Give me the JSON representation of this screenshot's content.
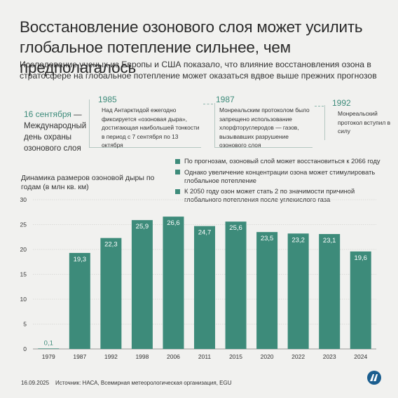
{
  "title": "Восстановление озонового слоя может усилить глобальное потепление сильнее, чем предполагалось",
  "subtitle": "Исследование ученых из Европы и США показало, что влияние восстановления озона в стратосфере на глобальное потепление может оказаться вдвое выше прежних прогнозов",
  "ozone_day": {
    "date": "16 сентября",
    "dash": " —",
    "text": "Международный день охраны озонового слоя"
  },
  "timeline": [
    {
      "year": "1985",
      "text": "Над Антарктидой ежегодно фиксируется «озоновая дыра», достигающая наибольшей тонкости в период с 7 сентября по 13 октября"
    },
    {
      "year": "1987",
      "text": "Монреальским протоколом было запрещено использование хлорфторуглеродов — газов, вызывавших разрушение озонового слоя"
    },
    {
      "year": "1992",
      "text": "Монреальский протокол вступил в силу"
    }
  ],
  "legend": [
    "По прогнозам, озоновый слой может восстановиться к 2066 году",
    "Однако увеличение концентрации озона может стимулировать глобальное потепление",
    "К 2050 году озон может стать 2 по значимости причиной глобального потепления после углекислого газа"
  ],
  "footer": {
    "date": "16.09.2025",
    "source": "Источник: НАСА, Всемирная метеорологическая организация, EGU"
  },
  "colors": {
    "bar": "#3d8b7a",
    "accent": "#3d8b7a",
    "background": "#f1f1ef",
    "logo": "#1b5e8f"
  },
  "logo_icon": "anadolu-agency-logo",
  "chart_data": {
    "type": "bar",
    "title": "Динамика размеров озоновой дыры по годам (в млн кв. км)",
    "categories": [
      "1979",
      "1987",
      "1992",
      "1998",
      "2006",
      "2011",
      "2015",
      "2020",
      "2022",
      "2023",
      "2024"
    ],
    "values": [
      0.1,
      19.3,
      22.3,
      25.9,
      26.6,
      24.7,
      25.6,
      23.5,
      23.2,
      23.1,
      19.6
    ],
    "value_labels": [
      "0,1",
      "19,3",
      "22,3",
      "25,9",
      "26,6",
      "24,7",
      "25,6",
      "23,5",
      "23,2",
      "23,1",
      "19,6"
    ],
    "yticks": [
      "0",
      "5",
      "10",
      "15",
      "20",
      "25",
      "30"
    ],
    "ylim": [
      0,
      30
    ],
    "grid": true
  }
}
